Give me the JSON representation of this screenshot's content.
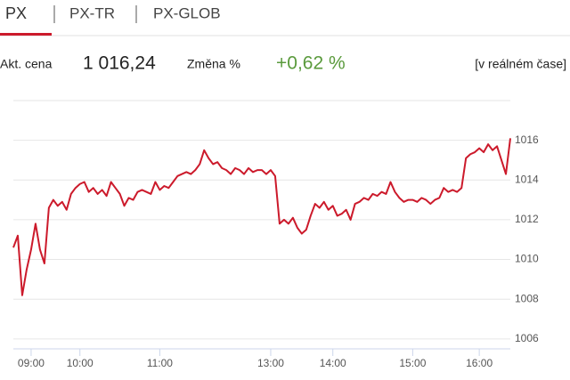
{
  "tabs": [
    "PX",
    "PX-TR",
    "PX-GLOB"
  ],
  "info": {
    "price_label": "Akt. cena",
    "price": "1 016,24",
    "change_label": "Změna %",
    "change": "+0,62 %",
    "mode": "[v reálném čase]"
  },
  "chart_data": {
    "type": "line",
    "color": "#cc1a2b",
    "grid": true,
    "categories": [
      null,
      null,
      null,
      null,
      "09:00",
      null,
      null,
      null,
      null,
      null,
      null,
      null,
      null,
      null,
      null,
      "10:00",
      null,
      null,
      null,
      null,
      null,
      null,
      null,
      null,
      null,
      null,
      null,
      null,
      null,
      null,
      null,
      null,
      null,
      "11:00",
      null,
      null,
      null,
      null,
      null,
      null,
      null,
      null,
      null,
      null,
      null,
      null,
      null,
      null,
      null,
      null,
      null,
      null,
      null,
      null,
      null,
      null,
      null,
      null,
      "13:00",
      null,
      null,
      null,
      null,
      null,
      null,
      null,
      null,
      null,
      null,
      null,
      null,
      null,
      "14:00",
      null,
      null,
      null,
      null,
      null,
      null,
      null,
      null,
      null,
      null,
      null,
      null,
      null,
      null,
      null,
      null,
      null,
      "15:00",
      null,
      null,
      null,
      null,
      null,
      null,
      null,
      null,
      null,
      null,
      null,
      null,
      null,
      null,
      "16:00",
      null,
      null,
      null,
      null,
      null,
      null,
      null
    ],
    "values": [
      1010.6,
      1011.2,
      1008.2,
      1009.5,
      1010.5,
      1011.8,
      1010.5,
      1009.8,
      1012.6,
      1013.0,
      1012.7,
      1012.9,
      1012.5,
      1013.3,
      1013.6,
      1013.8,
      1013.9,
      1013.4,
      1013.6,
      1013.3,
      1013.5,
      1013.2,
      1013.9,
      1013.6,
      1013.3,
      1012.7,
      1013.1,
      1013.0,
      1013.4,
      1013.5,
      1013.4,
      1013.3,
      1013.9,
      1013.5,
      1013.7,
      1013.6,
      1013.9,
      1014.2,
      1014.3,
      1014.4,
      1014.3,
      1014.5,
      1014.8,
      1015.5,
      1015.1,
      1014.8,
      1014.9,
      1014.6,
      1014.5,
      1014.3,
      1014.6,
      1014.5,
      1014.3,
      1014.6,
      1014.4,
      1014.5,
      1014.5,
      1014.3,
      1014.5,
      1014.2,
      1011.8,
      1012.0,
      1011.8,
      1012.1,
      1011.6,
      1011.3,
      1011.5,
      1012.2,
      1012.8,
      1012.6,
      1012.9,
      1012.5,
      1012.7,
      1012.2,
      1012.3,
      1012.5,
      1012.0,
      1012.8,
      1012.9,
      1013.1,
      1013.0,
      1013.3,
      1013.2,
      1013.4,
      1013.3,
      1013.9,
      1013.4,
      1013.1,
      1012.9,
      1013.0,
      1013.0,
      1012.9,
      1013.1,
      1013.0,
      1012.8,
      1013.0,
      1013.1,
      1013.6,
      1013.4,
      1013.5,
      1013.4,
      1013.6,
      1015.1,
      1015.3,
      1015.4,
      1015.6,
      1015.4,
      1015.8,
      1015.5,
      1015.7,
      1015.0,
      1014.3,
      1016.1
    ],
    "ylim": [
      1005.5,
      1018
    ],
    "yticks": [
      1006,
      1008,
      1010,
      1012,
      1014,
      1016
    ]
  }
}
